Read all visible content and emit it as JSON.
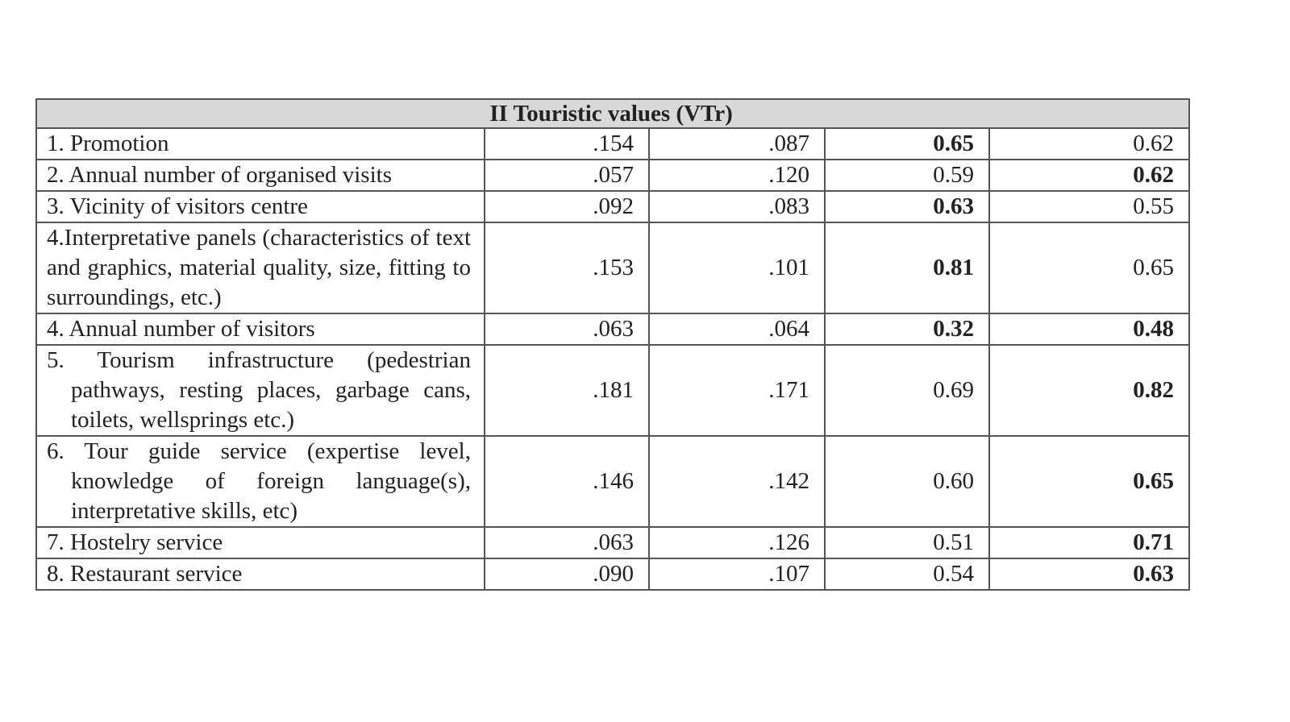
{
  "table": {
    "title": "II Touristic values (VTr)",
    "rows": [
      {
        "label": "1. Promotion",
        "values": [
          ".154",
          ".087",
          "0.65",
          "0.62"
        ],
        "bold": [
          false,
          false,
          true,
          false
        ]
      },
      {
        "label": "2. Annual number of organised visits",
        "values": [
          ".057",
          ".120",
          "0.59",
          "0.62"
        ],
        "bold": [
          false,
          false,
          false,
          true
        ]
      },
      {
        "label": "3. Vicinity of visitors centre",
        "values": [
          ".092",
          ".083",
          "0.63",
          "0.55"
        ],
        "bold": [
          false,
          false,
          true,
          false
        ]
      },
      {
        "label": "4.Interpretative panels (characteristics of text and graphics, material quality, size, fitting to surroundings, etc.)",
        "values": [
          ".153",
          ".101",
          "0.81",
          "0.65"
        ],
        "bold": [
          false,
          false,
          true,
          false
        ]
      },
      {
        "label": "4. Annual number of visitors",
        "values": [
          ".063",
          ".064",
          "0.32",
          "0.48"
        ],
        "bold": [
          false,
          false,
          true,
          true
        ]
      },
      {
        "label": "5. Tourism infrastructure (pedestrian pathways, resting places, garbage cans, toilets, wellsprings etc.)",
        "values": [
          ".181",
          ".171",
          "0.69",
          "0.82"
        ],
        "bold": [
          false,
          false,
          false,
          true
        ],
        "hang": true
      },
      {
        "label": "6. Tour guide service (expertise level, knowledge of foreign language(s), interpretative skills, etc)",
        "values": [
          ".146",
          ".142",
          "0.60",
          "0.65"
        ],
        "bold": [
          false,
          false,
          false,
          true
        ],
        "hang": true
      },
      {
        "label": "7. Hostelry service",
        "values": [
          ".063",
          ".126",
          "0.51",
          "0.71"
        ],
        "bold": [
          false,
          false,
          false,
          true
        ]
      },
      {
        "label": "8. Restaurant service",
        "values": [
          ".090",
          ".107",
          "0.54",
          "0.63"
        ],
        "bold": [
          false,
          false,
          false,
          true
        ]
      }
    ]
  }
}
